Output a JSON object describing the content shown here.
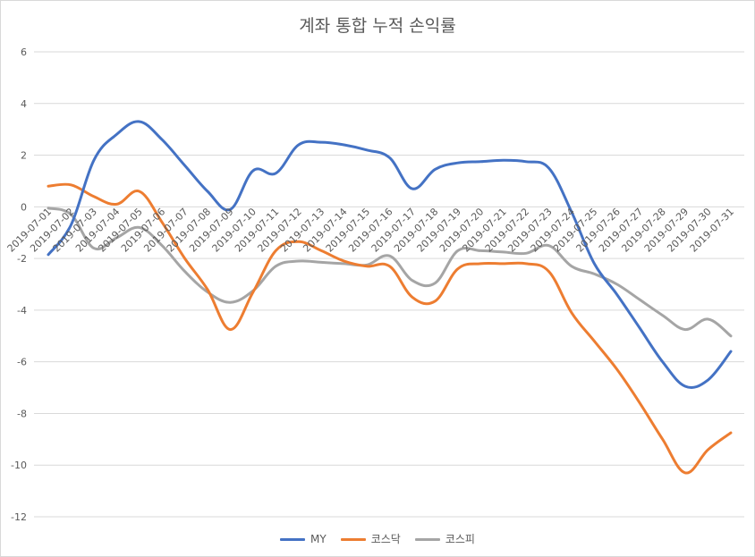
{
  "chart_data": {
    "type": "line",
    "title": "계좌 통합 누적 손익률",
    "xlabel": "",
    "ylabel": "",
    "ylim": [
      -12,
      6
    ],
    "yticks": [
      6,
      4,
      2,
      0,
      -2,
      -4,
      -6,
      -8,
      -10,
      -12
    ],
    "grid": true,
    "legend_position": "bottom",
    "categories": [
      "2019-07-01",
      "2019-07-02",
      "2019-07-03",
      "2019-07-04",
      "2019-07-05",
      "2019-07-06",
      "2019-07-07",
      "2019-07-08",
      "2019-07-09",
      "2019-07-10",
      "2019-07-11",
      "2019-07-12",
      "2019-07-13",
      "2019-07-14",
      "2019-07-15",
      "2019-07-16",
      "2019-07-17",
      "2019-07-18",
      "2019-07-19",
      "2019-07-20",
      "2019-07-21",
      "2019-07-22",
      "2019-07-23",
      "2019-07-24",
      "2019-07-25",
      "2019-07-26",
      "2019-07-27",
      "2019-07-28",
      "2019-07-29",
      "2019-07-30",
      "2019-07-31"
    ],
    "series": [
      {
        "name": "MY",
        "color": "#4472c4",
        "values": [
          -1.85,
          -0.7,
          1.8,
          2.8,
          3.3,
          2.6,
          1.6,
          0.6,
          -0.1,
          1.4,
          1.3,
          2.4,
          2.5,
          2.4,
          2.2,
          1.9,
          0.7,
          1.45,
          1.7,
          1.75,
          1.8,
          1.75,
          1.5,
          -0.2,
          -2.2,
          -3.4,
          -4.7,
          -6.0,
          -6.95,
          -6.7,
          -5.6
        ]
      },
      {
        "name": "코스닥",
        "color": "#ed7d31",
        "values": [
          0.8,
          0.85,
          0.4,
          0.1,
          0.6,
          -0.6,
          -2.0,
          -3.2,
          -4.75,
          -3.3,
          -1.7,
          -1.35,
          -1.7,
          -2.1,
          -2.3,
          -2.3,
          -3.5,
          -3.65,
          -2.4,
          -2.2,
          -2.2,
          -2.2,
          -2.5,
          -4.1,
          -5.2,
          -6.3,
          -7.6,
          -9.0,
          -10.3,
          -9.4,
          -8.75
        ]
      },
      {
        "name": "코스피",
        "color": "#a5a5a5",
        "values": [
          -0.05,
          -0.3,
          -1.6,
          -1.2,
          -0.8,
          -1.5,
          -2.5,
          -3.3,
          -3.7,
          -3.25,
          -2.3,
          -2.1,
          -2.15,
          -2.2,
          -2.25,
          -1.9,
          -2.85,
          -2.95,
          -1.7,
          -1.7,
          -1.75,
          -1.8,
          -1.5,
          -2.3,
          -2.6,
          -3.0,
          -3.6,
          -4.2,
          -4.75,
          -4.35,
          -5.0
        ]
      }
    ]
  }
}
